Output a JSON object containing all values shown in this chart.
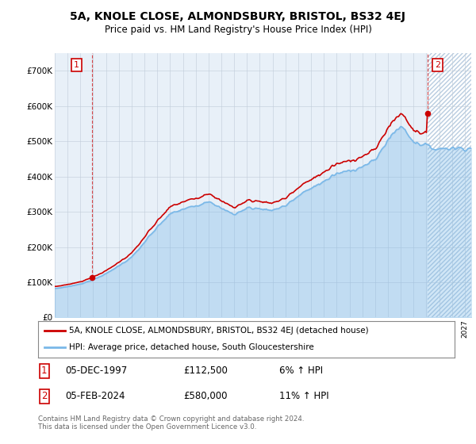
{
  "title_line1": "5A, KNOLE CLOSE, ALMONDSBURY, BRISTOL, BS32 4EJ",
  "title_line2": "Price paid vs. HM Land Registry's House Price Index (HPI)",
  "hpi_label": "HPI: Average price, detached house, South Gloucestershire",
  "price_label": "5A, KNOLE CLOSE, ALMONDSBURY, BRISTOL, BS32 4EJ (detached house)",
  "sale1_date": "05-DEC-1997",
  "sale1_price": 112500,
  "sale1_info": "6% ↑ HPI",
  "sale2_date": "05-FEB-2024",
  "sale2_price": 580000,
  "sale2_info": "11% ↑ HPI",
  "hpi_line_color": "#7ab8e8",
  "price_color": "#cc0000",
  "annotation_box_color": "#cc0000",
  "bg_color": "#e8f0f8",
  "hatch_color": "#b8cce0",
  "grid_color": "#c0ccd8",
  "xmin": 1995.0,
  "xmax": 2027.5,
  "ymin": 0,
  "ymax": 750000,
  "yticks": [
    0,
    100000,
    200000,
    300000,
    400000,
    500000,
    600000,
    700000
  ],
  "ytick_labels": [
    "£0",
    "£100K",
    "£200K",
    "£300K",
    "£400K",
    "£500K",
    "£600K",
    "£700K"
  ],
  "footer": "Contains HM Land Registry data © Crown copyright and database right 2024.\nThis data is licensed under the Open Government Licence v3.0.",
  "sale1_year": 1997.917,
  "sale2_year": 2024.083
}
